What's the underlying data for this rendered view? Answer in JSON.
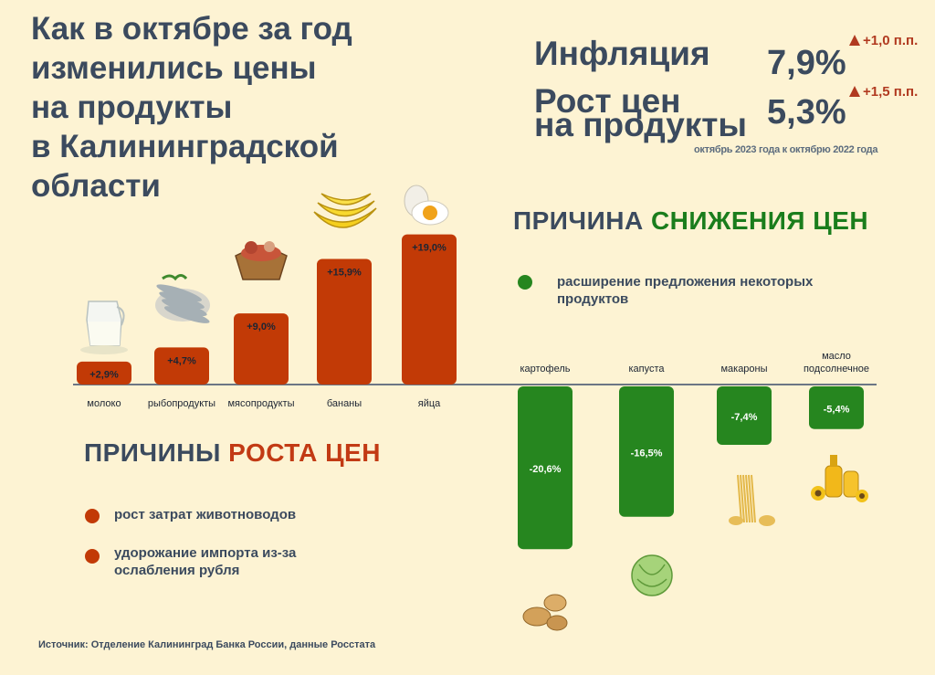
{
  "title": [
    "Как в октябре за год",
    "изменились цены",
    "на продукты",
    "в Калининградской",
    "области"
  ],
  "stats": {
    "inflation_label": "Инфляция",
    "inflation_value": "7,9%",
    "inflation_delta": "+1,0 п.п.",
    "food_label_1": "Рост цен",
    "food_label_2": "на продукты",
    "food_value": "5,3%",
    "food_delta": "+1,5 п.п.",
    "note": "октябрь 2023 года к октябрю 2022 года"
  },
  "decrease_section": {
    "head_plain": "ПРИЧИНА ",
    "head_accent": "СНИЖЕНИЯ ЦЕН",
    "bullets": [
      "расширение предложения некоторых продуктов"
    ]
  },
  "increase_section": {
    "head_plain": "ПРИЧИНЫ ",
    "head_accent": "РОСТА ЦЕН",
    "bullets": [
      "рост затрат животноводов",
      "удорожание импорта из-за ослабления рубля"
    ]
  },
  "source": "Источник: Отделение Калининград Банка России, данные Росстата",
  "colors": {
    "increase": "#c23a06",
    "decrease": "#26861f",
    "text": "#3b4a5e",
    "background": "#fdf3d3"
  },
  "chart_data": {
    "type": "bar",
    "categories": [
      "молоко",
      "рыбопродукты",
      "мясопродукты",
      "бананы",
      "яйца",
      "картофель",
      "капуста",
      "макароны",
      "масло подсолнечное"
    ],
    "values": [
      2.9,
      4.7,
      9.0,
      15.9,
      19.0,
      -20.6,
      -16.5,
      -7.4,
      -5.4
    ],
    "labels": [
      "+2,9%",
      "+4,7%",
      "+9,0%",
      "+15,9%",
      "+19,0%",
      "-20,6%",
      "-16,5%",
      "-7,4%",
      "-5,4%"
    ],
    "icons": [
      "milk-icon",
      "fish-icon",
      "meat-basket-icon",
      "bananas-icon",
      "egg-icon",
      "potato-icon",
      "cabbage-icon",
      "pasta-icon",
      "oil-icon"
    ],
    "category_label_position": [
      "below",
      "below",
      "below",
      "below",
      "below",
      "above",
      "above",
      "above",
      "above"
    ],
    "grid": false,
    "legend": "none"
  }
}
